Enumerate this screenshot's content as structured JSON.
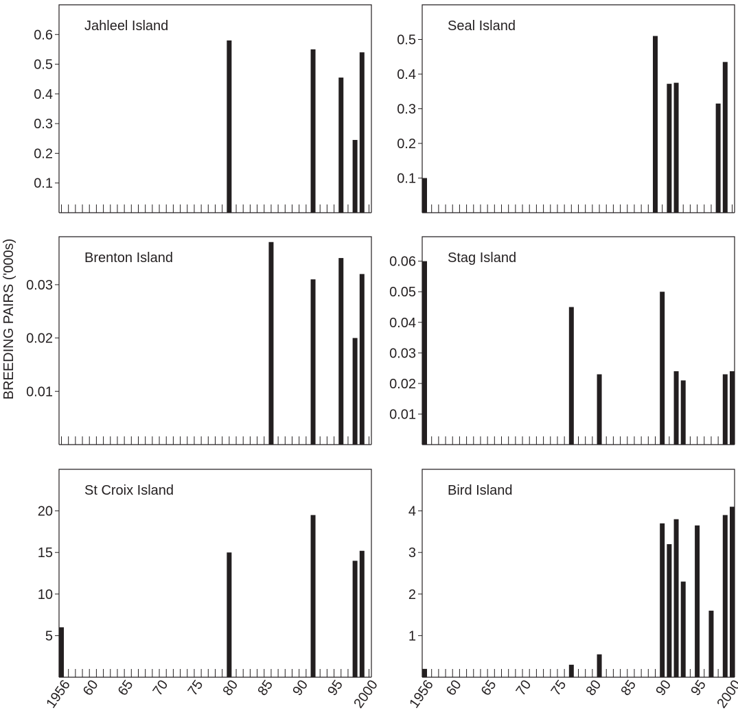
{
  "ylabel": "BREEDING PAIRS ('000s)",
  "chart_data": [
    {
      "type": "bar",
      "title": "Jahleel Island",
      "ylim": [
        0,
        0.7
      ],
      "yticks": [
        0.1,
        0.2,
        0.3,
        0.4,
        0.5,
        0.6
      ],
      "ytick_labels": [
        "0.1",
        "0.2",
        "0.3",
        "0.4",
        "0.5",
        "0.6"
      ],
      "xlim": [
        1956,
        2000
      ],
      "x": [
        1980,
        1992,
        1996,
        1998,
        1999
      ],
      "values": [
        0.58,
        0.55,
        0.455,
        0.245,
        0.54
      ]
    },
    {
      "type": "bar",
      "title": "Seal Island",
      "ylim": [
        0,
        0.6
      ],
      "yticks": [
        0.1,
        0.2,
        0.3,
        0.4,
        0.5
      ],
      "ytick_labels": [
        "0.1",
        "0.2",
        "0.3",
        "0.4",
        "0.5"
      ],
      "xlim": [
        1956,
        2000
      ],
      "x": [
        1956,
        1989,
        1991,
        1992,
        1998,
        1999
      ],
      "values": [
        0.1,
        0.51,
        0.372,
        0.375,
        0.315,
        0.435
      ]
    },
    {
      "type": "bar",
      "title": "Brenton Island",
      "ylim": [
        0,
        0.039
      ],
      "yticks": [
        0.01,
        0.02,
        0.03
      ],
      "ytick_labels": [
        "0.01",
        "0.02",
        "0.03"
      ],
      "xlim": [
        1956,
        2000
      ],
      "x": [
        1986,
        1992,
        1996,
        1998,
        1999
      ],
      "values": [
        0.038,
        0.031,
        0.035,
        0.02,
        0.032
      ]
    },
    {
      "type": "bar",
      "title": "Stag Island",
      "ylim": [
        0,
        0.068
      ],
      "yticks": [
        0.01,
        0.02,
        0.03,
        0.04,
        0.05,
        0.06
      ],
      "ytick_labels": [
        "0.01",
        "0.02",
        "0.03",
        "0.04",
        "0.05",
        "0.06"
      ],
      "xlim": [
        1956,
        2000
      ],
      "x": [
        1956,
        1977,
        1981,
        1990,
        1992,
        1993,
        1999,
        2000
      ],
      "values": [
        0.06,
        0.045,
        0.023,
        0.05,
        0.024,
        0.021,
        0.023,
        0.024
      ]
    },
    {
      "type": "bar",
      "title": "St Croix Island",
      "ylim": [
        0,
        25
      ],
      "yticks": [
        5,
        10,
        15,
        20
      ],
      "ytick_labels": [
        "5",
        "10",
        "15",
        "20"
      ],
      "xlim": [
        1956,
        2000
      ],
      "x": [
        1956,
        1980,
        1992,
        1998,
        1999
      ],
      "values": [
        6,
        15,
        19.5,
        14,
        15.2
      ],
      "xtick_labels": [
        "1956",
        "60",
        "65",
        "70",
        "75",
        "80",
        "85",
        "90",
        "95",
        "2000"
      ],
      "xtick_values": [
        1956,
        1960,
        1965,
        1970,
        1975,
        1980,
        1985,
        1990,
        1995,
        2000
      ]
    },
    {
      "type": "bar",
      "title": "Bird Island",
      "ylim": [
        0,
        5
      ],
      "yticks": [
        1,
        2,
        3,
        4
      ],
      "ytick_labels": [
        "1",
        "2",
        "3",
        "4"
      ],
      "xlim": [
        1956,
        2000
      ],
      "x": [
        1956,
        1977,
        1981,
        1990,
        1991,
        1992,
        1993,
        1995,
        1997,
        1999,
        2000
      ],
      "values": [
        0.2,
        0.3,
        0.55,
        3.7,
        3.2,
        3.8,
        2.3,
        3.65,
        1.6,
        3.9,
        4.1
      ],
      "xtick_labels": [
        "1956",
        "60",
        "65",
        "70",
        "75",
        "80",
        "85",
        "90",
        "95",
        "2000"
      ],
      "xtick_values": [
        1956,
        1960,
        1965,
        1970,
        1975,
        1980,
        1985,
        1990,
        1995,
        2000
      ]
    }
  ]
}
